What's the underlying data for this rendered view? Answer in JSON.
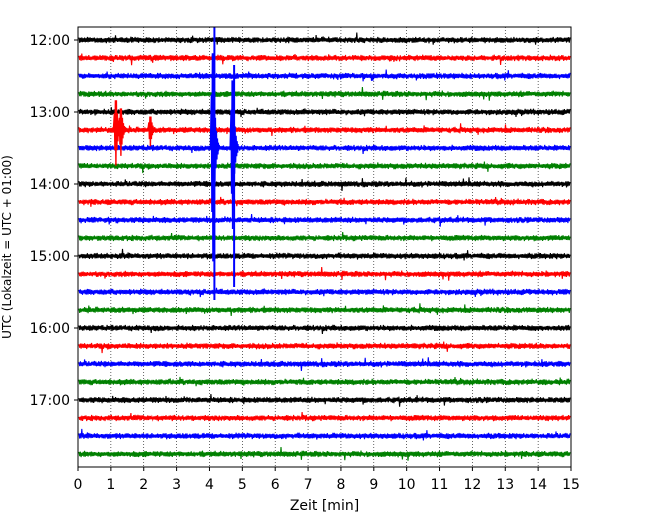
{
  "chart_data": {
    "type": "line",
    "title": "",
    "xlabel": "Zeit  [min]",
    "ylabel": "UTC (Lokalzeit = UTC + 01:00)",
    "xlim": [
      0,
      15
    ],
    "x_ticks": [
      0,
      1,
      2,
      3,
      4,
      5,
      6,
      7,
      8,
      9,
      10,
      11,
      12,
      13,
      14,
      15
    ],
    "x_tick_labels": [
      "0",
      "1",
      "2",
      "3",
      "4",
      "5",
      "6",
      "7",
      "8",
      "9",
      "10",
      "11",
      "12",
      "13",
      "14",
      "15"
    ],
    "y_tick_labels": [
      "12:00",
      "13:00",
      "14:00",
      "15:00",
      "16:00",
      "17:00"
    ],
    "grid": "vertical dotted",
    "trace_colors": [
      "#000000",
      "#ff0000",
      "#0000ff",
      "#008000"
    ],
    "traces": [
      {
        "start": "12:00"
      },
      {
        "start": "12:15"
      },
      {
        "start": "12:30"
      },
      {
        "start": "12:45"
      },
      {
        "start": "13:00"
      },
      {
        "start": "13:15"
      },
      {
        "start": "13:30"
      },
      {
        "start": "13:45"
      },
      {
        "start": "14:00"
      },
      {
        "start": "14:15"
      },
      {
        "start": "14:30"
      },
      {
        "start": "14:45"
      },
      {
        "start": "15:00"
      },
      {
        "start": "15:15"
      },
      {
        "start": "15:30"
      },
      {
        "start": "15:45"
      },
      {
        "start": "16:00"
      },
      {
        "start": "16:15"
      },
      {
        "start": "16:30"
      },
      {
        "start": "16:45"
      },
      {
        "start": "17:00"
      },
      {
        "start": "17:15"
      },
      {
        "start": "17:30"
      },
      {
        "start": "17:45"
      }
    ],
    "events": [
      {
        "trace_start": "13:15",
        "minute": 1.2,
        "amplitude": 2.2
      },
      {
        "trace_start": "13:15",
        "minute": 1.35,
        "amplitude": 1.6
      },
      {
        "trace_start": "13:15",
        "minute": 2.25,
        "amplitude": 1.0
      },
      {
        "trace_start": "13:30",
        "minute": 4.15,
        "amplitude": 7.0
      },
      {
        "trace_start": "13:30",
        "minute": 4.75,
        "amplitude": 5.0
      }
    ]
  }
}
